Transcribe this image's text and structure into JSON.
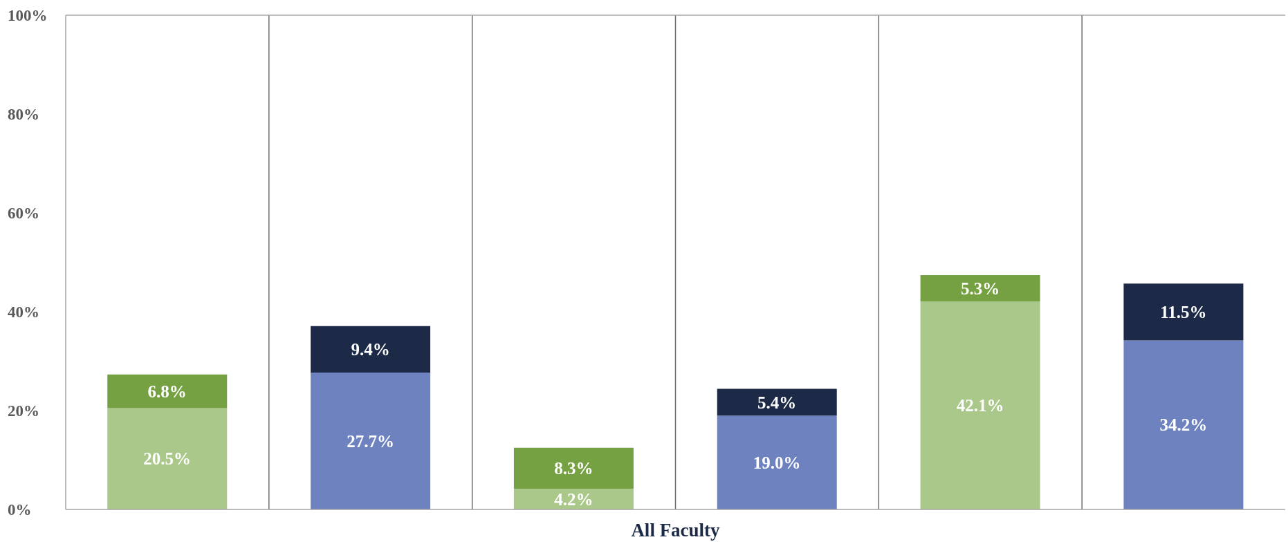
{
  "chart_data": {
    "type": "bar",
    "stacked": true,
    "xlabel": "All Faculty",
    "categories": [
      null,
      null,
      null,
      null,
      null,
      null
    ],
    "series": [
      {
        "colors": [
          "#a9c88a",
          "#6e82c0",
          "#a9c88a",
          "#6e82c0",
          "#a9c88a",
          "#6e82c0"
        ],
        "values": [
          20.5,
          27.7,
          4.2,
          19.0,
          42.1,
          34.2
        ],
        "value_labels": [
          "20.5%",
          "27.7%",
          "4.2%",
          "19.0%",
          "42.1%",
          "34.2%"
        ]
      },
      {
        "colors": [
          "#76a143",
          "#1c2a48",
          "#76a143",
          "#1c2a48",
          "#76a143",
          "#1c2a48"
        ],
        "values": [
          6.8,
          9.4,
          8.3,
          5.4,
          5.3,
          11.5
        ],
        "value_labels": [
          "6.8%",
          "9.4%",
          "8.3%",
          "5.4%",
          "5.3%",
          "11.5%"
        ]
      }
    ],
    "ylim": [
      0,
      100
    ],
    "yticks": [
      {
        "value": 0,
        "label": "0%"
      },
      {
        "value": 20,
        "label": "20%"
      },
      {
        "value": 40,
        "label": "40%"
      },
      {
        "value": 60,
        "label": "60%"
      },
      {
        "value": 80,
        "label": "80%"
      },
      {
        "value": 100,
        "label": "100%"
      }
    ],
    "grid": "x"
  }
}
